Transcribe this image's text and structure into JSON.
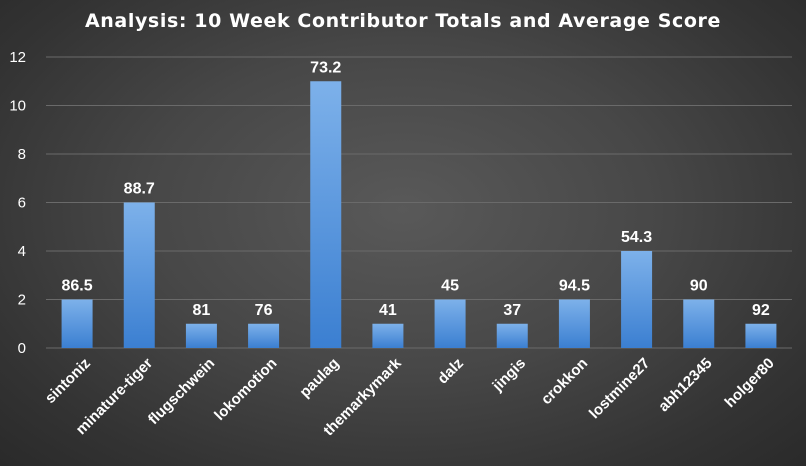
{
  "chart_data": {
    "type": "bar",
    "title": "Analysis:  10 Week Contributor Totals and Average Score",
    "xlabel": "",
    "ylabel": "",
    "ylim": [
      0,
      12
    ],
    "yticks": [
      0,
      2,
      4,
      6,
      8,
      10,
      12
    ],
    "grid": true,
    "legend": "none",
    "categories": [
      "sintoniz",
      "minature-tiger",
      "flugschwein",
      "lokomotion",
      "paulag",
      "themarkymark",
      "dalz",
      "jingis",
      "crokkon",
      "lostmine27",
      "abh12345",
      "holger80"
    ],
    "values": [
      2,
      6,
      1,
      1,
      11,
      1,
      2,
      1,
      2,
      4,
      2,
      1
    ],
    "data_labels": [
      "86.5",
      "88.7",
      "81",
      "76",
      "73.2",
      "41",
      "45",
      "37",
      "94.5",
      "54.3",
      "90",
      "92"
    ],
    "colors": {
      "bar_top": "#7db1ea",
      "bar_bottom": "#3b7fd1",
      "background": "#474747",
      "text": "#ffffff"
    }
  }
}
